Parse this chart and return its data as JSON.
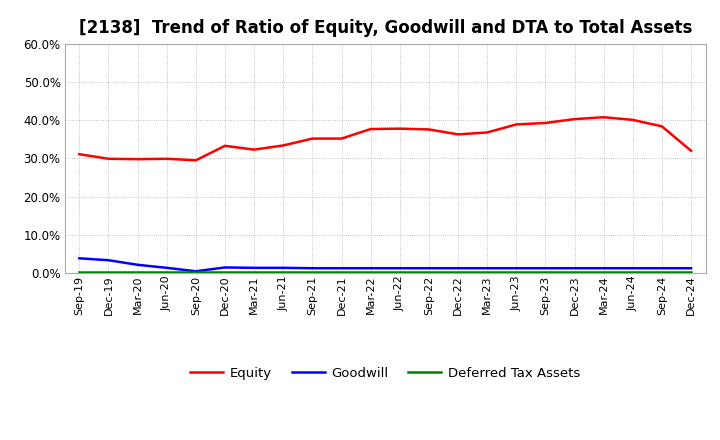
{
  "title": "[2138]  Trend of Ratio of Equity, Goodwill and DTA to Total Assets",
  "xlabels": [
    "Sep-19",
    "Dec-19",
    "Mar-20",
    "Jun-20",
    "Sep-20",
    "Dec-20",
    "Mar-21",
    "Jun-21",
    "Sep-21",
    "Dec-21",
    "Mar-22",
    "Jun-22",
    "Sep-22",
    "Dec-22",
    "Mar-23",
    "Jun-23",
    "Sep-23",
    "Dec-23",
    "Mar-24",
    "Jun-24",
    "Sep-24",
    "Dec-24"
  ],
  "equity": [
    0.311,
    0.299,
    0.298,
    0.299,
    0.295,
    0.333,
    0.323,
    0.334,
    0.352,
    0.352,
    0.377,
    0.378,
    0.376,
    0.363,
    0.368,
    0.389,
    0.393,
    0.403,
    0.408,
    0.401,
    0.384,
    0.32
  ],
  "goodwill": [
    0.038,
    0.033,
    0.021,
    0.013,
    0.004,
    0.014,
    0.013,
    0.013,
    0.012,
    0.012,
    0.012,
    0.012,
    0.012,
    0.012,
    0.012,
    0.012,
    0.012,
    0.012,
    0.012,
    0.012,
    0.012,
    0.012
  ],
  "dta": [
    0.001,
    0.001,
    0.001,
    0.001,
    0.001,
    0.001,
    0.001,
    0.001,
    0.001,
    0.001,
    0.001,
    0.001,
    0.001,
    0.001,
    0.001,
    0.001,
    0.001,
    0.001,
    0.001,
    0.001,
    0.001,
    0.001
  ],
  "equity_color": "#ff0000",
  "goodwill_color": "#0000ff",
  "dta_color": "#008000",
  "ylim": [
    0.0,
    0.6
  ],
  "yticks": [
    0.0,
    0.1,
    0.2,
    0.3,
    0.4,
    0.5,
    0.6
  ],
  "background_color": "#ffffff",
  "grid_color": "#aaaaaa",
  "title_fontsize": 12,
  "legend_labels": [
    "Equity",
    "Goodwill",
    "Deferred Tax Assets"
  ],
  "spine_color": "#aaaaaa"
}
